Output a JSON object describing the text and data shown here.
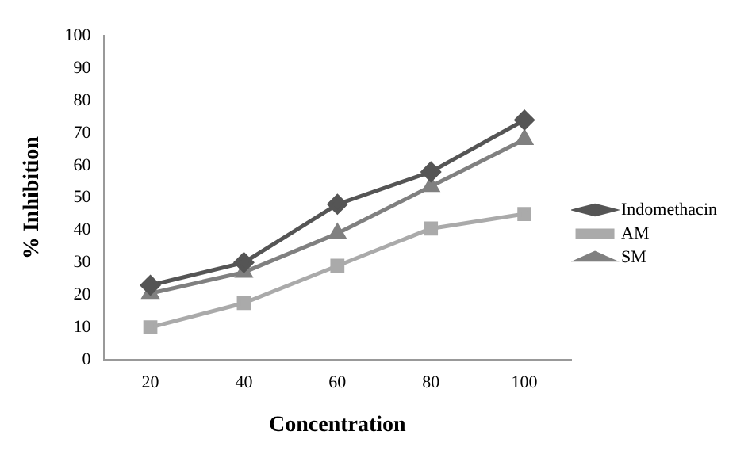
{
  "chart_data": {
    "type": "line",
    "xlabel": "Concentration",
    "ylabel": "% Inhibition",
    "categories": [
      "20",
      "40",
      "60",
      "80",
      "100"
    ],
    "series": [
      {
        "name": "Indomethacin",
        "color": "#555555",
        "marker": "diamond",
        "values": [
          23,
          30,
          48,
          58,
          74
        ]
      },
      {
        "name": "AM",
        "color": "#aaaaaa",
        "marker": "square",
        "values": [
          10,
          17.5,
          29,
          40.5,
          45
        ]
      },
      {
        "name": "SM",
        "color": "#808080",
        "marker": "triangle",
        "values": [
          20.5,
          27,
          39,
          53.5,
          68
        ]
      }
    ],
    "ylim": [
      0,
      100
    ],
    "yticks": [
      0,
      10,
      20,
      30,
      40,
      50,
      60,
      70,
      80,
      90,
      100
    ],
    "grid": false,
    "legend": "right",
    "line_style": "solid"
  }
}
